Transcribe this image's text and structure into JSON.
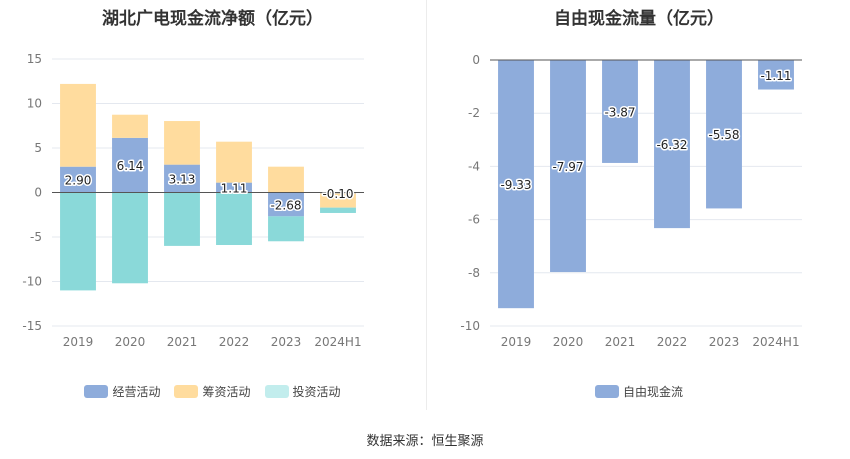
{
  "source": "数据来源：恒生聚源",
  "colors": {
    "operating": "#8eacdb",
    "financing": "#ffdc9e",
    "investing": "#8ad9d9",
    "investing_legend": "#c2eded",
    "fcf": "#8eacdb",
    "grid": "#e4e8ef",
    "zero_line": "#555555",
    "tick": "#777777"
  },
  "chart_data": [
    {
      "type": "bar",
      "stacked": true,
      "title": "湖北广电现金流净额（亿元）",
      "categories": [
        "2019",
        "2020",
        "2021",
        "2022",
        "2023",
        "2024H1"
      ],
      "ylim": [
        -15,
        15
      ],
      "yticks": [
        15,
        10,
        5,
        0,
        -5,
        -10,
        -15
      ],
      "legend_position": "bottom",
      "grid": true,
      "series": [
        {
          "name": "经营活动",
          "key": "operating",
          "values": [
            2.9,
            6.14,
            3.13,
            1.11,
            -2.68,
            -0.1
          ],
          "labels": [
            "2.90",
            "6.14",
            "3.13",
            "1.11",
            "-2.68",
            "-0.10"
          ]
        },
        {
          "name": "筹资活动",
          "key": "financing",
          "values": [
            9.3,
            2.6,
            4.9,
            4.6,
            2.9,
            -1.6
          ]
        },
        {
          "name": "投资活动",
          "key": "investing",
          "values": [
            -11.0,
            -10.2,
            -6.0,
            -5.9,
            -2.8,
            -0.6
          ]
        }
      ]
    },
    {
      "type": "bar",
      "stacked": false,
      "title": "自由现金流量（亿元）",
      "categories": [
        "2019",
        "2020",
        "2021",
        "2022",
        "2023",
        "2024H1"
      ],
      "ylim": [
        -10,
        0
      ],
      "yticks": [
        0,
        -2,
        -4,
        -6,
        -8,
        -10
      ],
      "legend_position": "bottom",
      "grid": true,
      "series": [
        {
          "name": "自由现金流",
          "key": "fcf",
          "values": [
            -9.33,
            -7.97,
            -3.87,
            -6.32,
            -5.58,
            -1.11
          ],
          "labels": [
            "-9.33",
            "-7.97",
            "-3.87",
            "-6.32",
            "-5.58",
            "-1.11"
          ]
        }
      ]
    }
  ]
}
